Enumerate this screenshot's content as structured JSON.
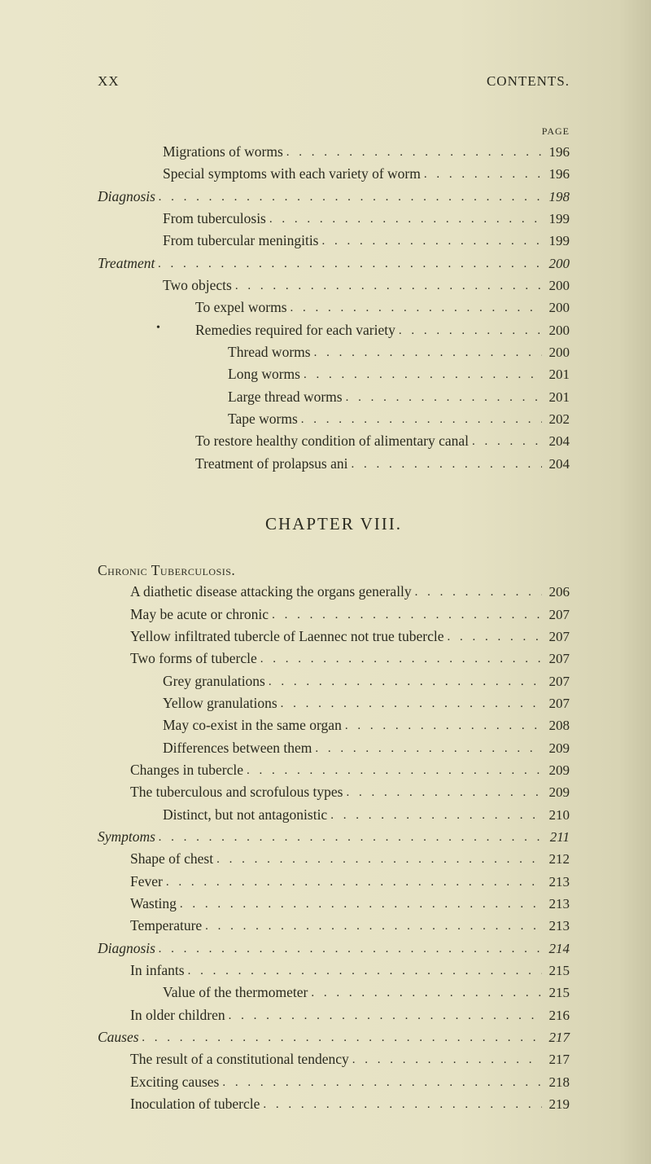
{
  "runningHead": {
    "left": "XX",
    "right": "CONTENTS."
  },
  "pageLabel": "PAGE",
  "block1": [
    {
      "text": "Migrations of worms",
      "page": "196",
      "indent": 2
    },
    {
      "text": "Special symptoms with each variety of worm",
      "page": "196",
      "indent": 2
    },
    {
      "text": "Diagnosis",
      "page": "198",
      "indent": 0,
      "italic": true
    },
    {
      "text": "From tuberculosis",
      "page": "199",
      "indent": 2
    },
    {
      "text": "From tubercular meningitis",
      "page": "199",
      "indent": 2
    },
    {
      "text": "Treatment",
      "page": "200",
      "indent": 0,
      "italic": true
    },
    {
      "text": "Two objects",
      "page": "200",
      "indent": 2
    },
    {
      "text": "To expel worms",
      "page": "200",
      "indent": 3
    },
    {
      "text": "Remedies required for each variety",
      "page": "200",
      "indent": 3,
      "bullet": true
    },
    {
      "text": "Thread worms",
      "page": "200",
      "indent": 4
    },
    {
      "text": "Long worms",
      "page": "201",
      "indent": 4
    },
    {
      "text": "Large thread worms",
      "page": "201",
      "indent": 4
    },
    {
      "text": "Tape worms",
      "page": "202",
      "indent": 4
    },
    {
      "text": "To restore healthy condition of alimentary canal",
      "page": "204",
      "indent": 3
    },
    {
      "text": "Treatment of prolapsus ani",
      "page": "204",
      "indent": 3
    }
  ],
  "chapterHead": "CHAPTER  VIII.",
  "sectionHead": "Chronic Tuberculosis.",
  "block2": [
    {
      "text": "A diathetic disease attacking the organs generally",
      "page": "206",
      "indent": 1
    },
    {
      "text": "May be acute or chronic",
      "page": "207",
      "indent": 1
    },
    {
      "text": "Yellow infiltrated tubercle of Laennec not true tubercle",
      "page": "207",
      "indent": 1
    },
    {
      "text": "Two forms of tubercle",
      "page": "207",
      "indent": 1
    },
    {
      "text": "Grey granulations",
      "page": "207",
      "indent": 2
    },
    {
      "text": "Yellow granulations",
      "page": "207",
      "indent": 2
    },
    {
      "text": "May co-exist in the same organ",
      "page": "208",
      "indent": 2
    },
    {
      "text": "Differences between them",
      "page": "209",
      "indent": 2
    },
    {
      "text": "Changes in tubercle",
      "page": "209",
      "indent": 1
    },
    {
      "text": "The tuberculous and scrofulous types",
      "page": "209",
      "indent": 1
    },
    {
      "text": "Distinct, but not antagonistic",
      "page": "210",
      "indent": 2
    },
    {
      "text": "Symptoms",
      "page": "211",
      "indent": 0,
      "italic": true
    },
    {
      "text": "Shape of chest",
      "page": "212",
      "indent": 1
    },
    {
      "text": "Fever",
      "page": "213",
      "indent": 1
    },
    {
      "text": "Wasting",
      "page": "213",
      "indent": 1
    },
    {
      "text": "Temperature",
      "page": "213",
      "indent": 1
    },
    {
      "text": "Diagnosis",
      "page": "214",
      "indent": 0,
      "italic": true
    },
    {
      "text": "In infants",
      "page": "215",
      "indent": 1
    },
    {
      "text": "Value of the thermometer",
      "page": "215",
      "indent": 2
    },
    {
      "text": "In older children",
      "page": "216",
      "indent": 1
    },
    {
      "text": "Causes",
      "page": "217",
      "indent": 0,
      "italic": true
    },
    {
      "text": "The result of a constitutional tendency",
      "page": "217",
      "indent": 1
    },
    {
      "text": "Exciting causes",
      "page": "218",
      "indent": 1
    },
    {
      "text": "Inoculation of tubercle",
      "page": "219",
      "indent": 1
    }
  ]
}
